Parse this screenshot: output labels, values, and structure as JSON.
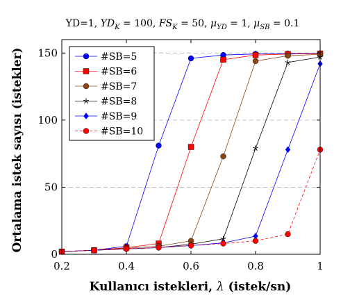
{
  "chart_data": {
    "type": "line",
    "title": "YD=1, YD_K = 100, FS_K = 50, μ_YD = 1, μ_SB = 0.1",
    "xlabel": "Kullanıcı istekleri, λ (istek/sn)",
    "ylabel": "Ortalama istek sayısı (istekler)",
    "xlim": [
      0.2,
      1.0
    ],
    "ylim": [
      0,
      160
    ],
    "xticks": [
      0.2,
      0.4,
      0.6,
      0.8,
      1
    ],
    "yticks": [
      0,
      50,
      100,
      150
    ],
    "xtick_labels": [
      "0.2",
      "0.4",
      "0.6",
      "0.8",
      "1"
    ],
    "ytick_labels": [
      "0",
      "50",
      "100",
      "150"
    ],
    "grid": "horizontal dashed",
    "legend_position": "top-left",
    "x": [
      0.2,
      0.3,
      0.4,
      0.5,
      0.6,
      0.7,
      0.8,
      0.9,
      1.0
    ],
    "series": [
      {
        "name": "#SB=5",
        "color": "#0000ff",
        "marker": "circle",
        "dash": false,
        "values": [
          2,
          3,
          6,
          81,
          146,
          148.5,
          149.3,
          149.6,
          149.8
        ]
      },
      {
        "name": "#SB=6",
        "color": "#ff0000",
        "marker": "square",
        "dash": false,
        "values": [
          2,
          3,
          5,
          8,
          80,
          145,
          148.5,
          149.2,
          149.6
        ]
      },
      {
        "name": "#SB=7",
        "color": "#8b4513",
        "marker": "circle",
        "dash": false,
        "values": [
          2,
          3,
          4.5,
          6,
          10,
          73,
          144,
          148,
          149
        ]
      },
      {
        "name": "#SB=8",
        "color": "#000000",
        "marker": "star",
        "dash": false,
        "values": [
          2,
          3,
          4,
          5,
          7.5,
          11.5,
          79,
          143,
          147
        ]
      },
      {
        "name": "#SB=9",
        "color": "#0000ff",
        "marker": "diamond",
        "dash": false,
        "values": [
          2,
          3,
          4,
          5,
          6.5,
          8.5,
          13.5,
          78,
          142
        ]
      },
      {
        "name": "#SB=10",
        "color": "#ff0000",
        "marker": "circle",
        "dash": true,
        "values": [
          2,
          3,
          4,
          5,
          6.5,
          8,
          10,
          15,
          78
        ]
      }
    ]
  }
}
